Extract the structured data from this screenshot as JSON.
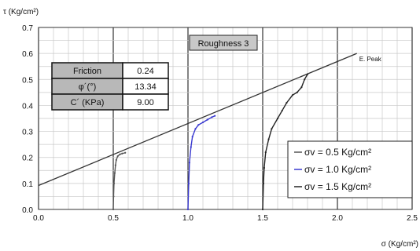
{
  "chart_data": {
    "type": "line",
    "title": "Roughness 3",
    "ylabel": "τ (Kg/cm²)",
    "xlabel": "σ (Kg/cm²)",
    "xlim": [
      0,
      2.5
    ],
    "ylim": [
      0,
      0.7
    ],
    "x_ticks": [
      "0.0",
      "0.5",
      "1.0",
      "1.5",
      "2.0",
      "2.5"
    ],
    "y_ticks": [
      "0.0",
      "0.1",
      "0.2",
      "0.3",
      "0.4",
      "0.5",
      "0.6",
      "0.7"
    ],
    "grid": true,
    "legend_position": "bottom-right",
    "params_table": [
      {
        "label": "Friction",
        "value": "0.24"
      },
      {
        "label": "φ´(°)",
        "value": "13.34"
      },
      {
        "label": "C´ (KPa)",
        "value": "9.00"
      }
    ],
    "peak_line": {
      "name": "E. Peak",
      "color": "#333333",
      "x": [
        0.0,
        2.13
      ],
      "y": [
        0.092,
        0.6
      ]
    },
    "series": [
      {
        "name": "σv = 0.5 Kg/cm²",
        "color": "#555555",
        "x": [
          0.5,
          0.502,
          0.505,
          0.51,
          0.515,
          0.52,
          0.53,
          0.545,
          0.56,
          0.58
        ],
        "y": [
          0.0,
          0.05,
          0.1,
          0.14,
          0.17,
          0.19,
          0.205,
          0.212,
          0.215,
          0.218
        ]
      },
      {
        "name": "σv = 1.0 Kg/cm²",
        "color": "#3a3ad0",
        "x": [
          1.0,
          1.005,
          1.01,
          1.02,
          1.03,
          1.05,
          1.07,
          1.1,
          1.13,
          1.16,
          1.18
        ],
        "y": [
          0.0,
          0.1,
          0.18,
          0.24,
          0.28,
          0.31,
          0.325,
          0.335,
          0.345,
          0.355,
          0.36
        ]
      },
      {
        "name": "σv = 1.5 Kg/cm²",
        "color": "#222222",
        "x": [
          1.5,
          1.505,
          1.51,
          1.52,
          1.54,
          1.56,
          1.6,
          1.63,
          1.66,
          1.7,
          1.73,
          1.76,
          1.78,
          1.8
        ],
        "y": [
          0.0,
          0.1,
          0.16,
          0.22,
          0.27,
          0.31,
          0.35,
          0.38,
          0.41,
          0.44,
          0.45,
          0.47,
          0.5,
          0.52
        ]
      }
    ]
  }
}
